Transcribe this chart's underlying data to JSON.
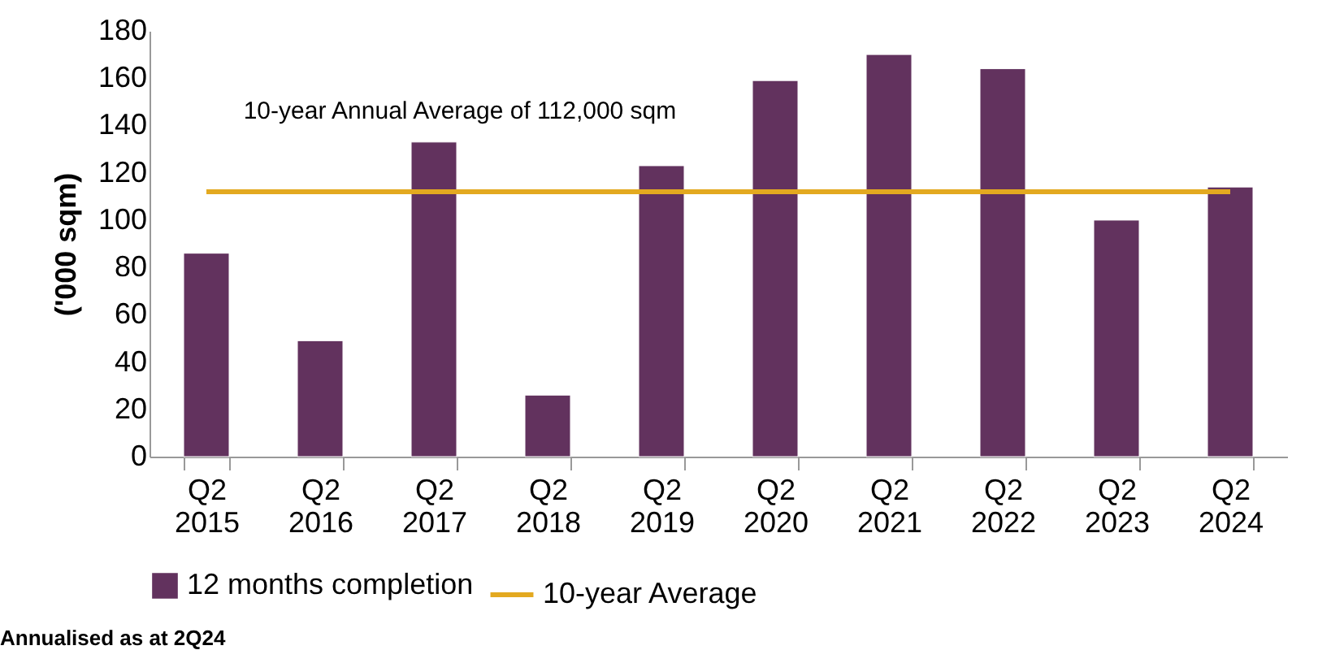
{
  "chart_data": {
    "type": "bar",
    "categories": [
      "Q2 2015",
      "Q2 2016",
      "Q2 2017",
      "Q2 2018",
      "Q2 2019",
      "Q2 2020",
      "Q2 2021",
      "Q2 2022",
      "Q2 2023",
      "Q2 2024"
    ],
    "ylabel": "('000 sqm)",
    "ylim": [
      0,
      180
    ],
    "yticks": [
      0,
      20,
      40,
      60,
      80,
      100,
      120,
      140,
      160,
      180
    ],
    "grid": false,
    "legend": "bottom",
    "series": [
      {
        "name": "12 months completion",
        "type": "bar",
        "color": "#62325e",
        "values": [
          86,
          49,
          133,
          26,
          123,
          159,
          170,
          164,
          100,
          114
        ]
      },
      {
        "name": "10-year Average",
        "type": "line",
        "color": "#e3a920",
        "marker": "none",
        "line_style": "solid",
        "values": [
          112,
          112,
          112,
          112,
          112,
          112,
          112,
          112,
          112,
          112
        ]
      }
    ],
    "annotations": [
      "10-year Annual Average of 112,000 sqm",
      "Annualised as at 2Q24"
    ]
  }
}
